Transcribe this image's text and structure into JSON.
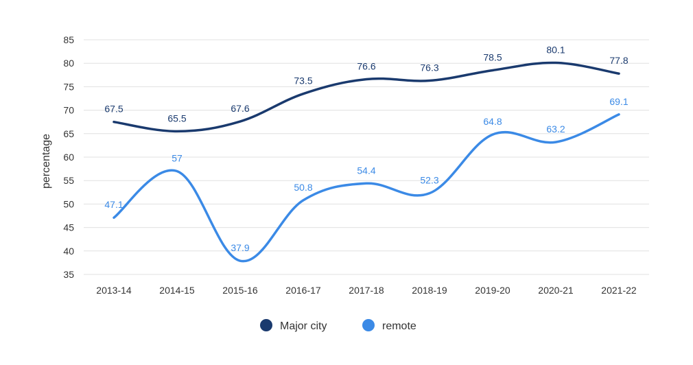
{
  "chart_data": {
    "type": "line",
    "ylabel": "percentage",
    "ylim": [
      35,
      85
    ],
    "yticks": [
      35,
      40,
      45,
      50,
      55,
      60,
      65,
      70,
      75,
      80,
      85
    ],
    "grid": true,
    "legend_position": "bottom-center",
    "categories": [
      "2013-14",
      "2014-15",
      "2015-16",
      "2016-17",
      "2017-18",
      "2018-19",
      "2019-20",
      "2020-21",
      "2021-22"
    ],
    "series": [
      {
        "name": "Major city",
        "color": "#1a3a6e",
        "values": [
          67.5,
          65.5,
          67.6,
          73.5,
          76.6,
          76.3,
          78.5,
          80.1,
          77.8
        ],
        "labels": [
          "67.5",
          "65.5",
          "67.6",
          "73.5",
          "76.6",
          "76.3",
          "78.5",
          "80.1",
          "77.8"
        ]
      },
      {
        "name": "remote",
        "color": "#3b8ae6",
        "values": [
          47.1,
          57,
          37.9,
          50.8,
          54.4,
          52.3,
          64.8,
          63.2,
          69.1
        ],
        "labels": [
          "47.1",
          "57",
          "37.9",
          "50.8",
          "54.4",
          "52.3",
          "64.8",
          "63.2",
          "69.1"
        ]
      }
    ]
  }
}
